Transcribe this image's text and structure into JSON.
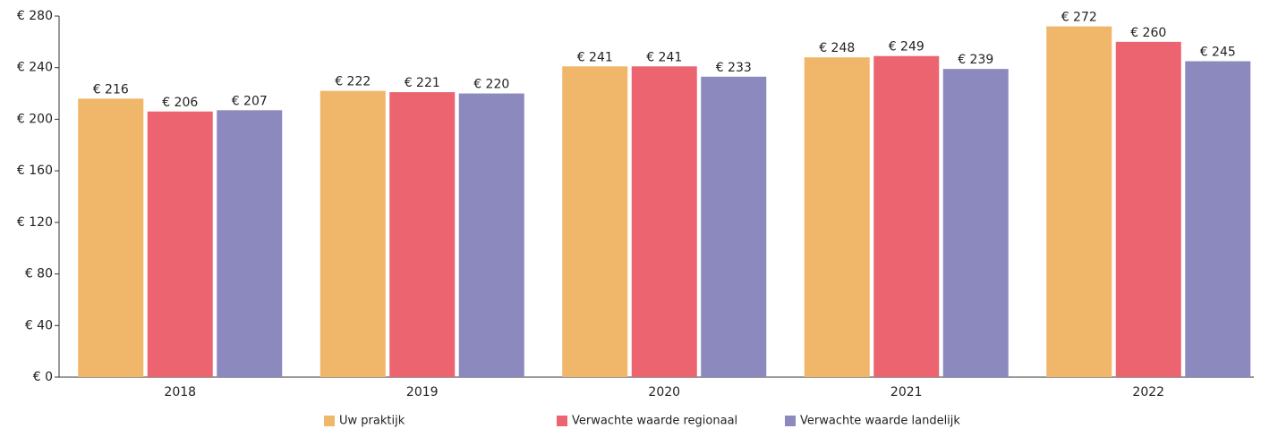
{
  "chart_data": {
    "type": "bar",
    "categories": [
      "2018",
      "2019",
      "2020",
      "2021",
      "2022"
    ],
    "series": [
      {
        "name": "Uw praktijk",
        "color": "#f0b669",
        "values": [
          216,
          222,
          241,
          248,
          272
        ],
        "value_labels": [
          "€ 216",
          "€ 222",
          "€ 241",
          "€ 248",
          "€ 272"
        ]
      },
      {
        "name": "Verwachte waarde regionaal",
        "color": "#ec6470",
        "values": [
          206,
          221,
          241,
          249,
          260
        ],
        "value_labels": [
          "€ 206",
          "€ 221",
          "€ 241",
          "€ 249",
          "€ 260"
        ]
      },
      {
        "name": "Verwachte waarde landelijk",
        "color": "#8b89bd",
        "values": [
          207,
          220,
          233,
          239,
          245
        ],
        "value_labels": [
          "€ 207",
          "€ 220",
          "€ 233",
          "€ 239",
          "€ 245"
        ]
      }
    ],
    "ylim": [
      0,
      280
    ],
    "yticks": [
      {
        "value": 0,
        "label": "€ 0"
      },
      {
        "value": 40,
        "label": "€ 40"
      },
      {
        "value": 80,
        "label": "€ 80"
      },
      {
        "value": 120,
        "label": "€ 120"
      },
      {
        "value": 160,
        "label": "€ 160"
      },
      {
        "value": 200,
        "label": "€ 200"
      },
      {
        "value": 240,
        "label": "€ 240"
      },
      {
        "value": 280,
        "label": "€ 280"
      }
    ],
    "grid": false,
    "legend": "bottom"
  }
}
